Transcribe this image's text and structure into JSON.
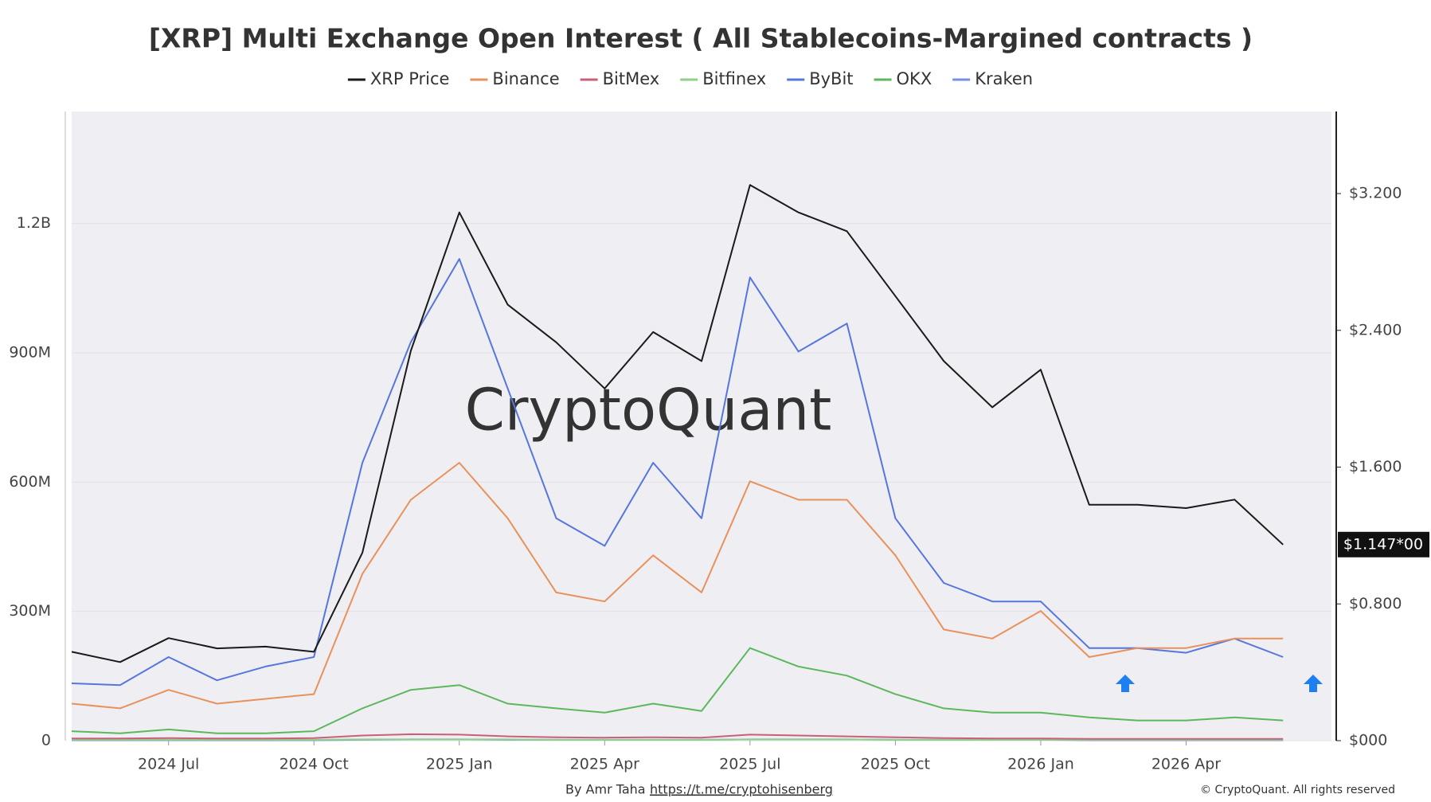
{
  "chart_data": {
    "type": "line",
    "title": "[XRP] Multi Exchange Open Interest ( All Stablecoins-Margined contracts )",
    "watermark": "CryptoQuant",
    "byline": "By Amr Taha",
    "link": "https://t.me/cryptohisenberg",
    "copyright": "© CryptoQuant. All rights reserved",
    "price_label": "$1.147*00",
    "x": [
      "2024-05",
      "2024-06",
      "2024-07",
      "2024-08",
      "2024-09",
      "2024-10",
      "2024-11",
      "2024-12",
      "2025-01",
      "2025-02",
      "2025-03",
      "2025-04",
      "2025-05",
      "2025-06",
      "2025-07",
      "2025-08",
      "2025-09",
      "2025-10",
      "2025-11",
      "2025-12",
      "2026-01",
      "2026-02",
      "2026-03",
      "2026-04",
      "2026-05",
      "2026-06"
    ],
    "xlim": [
      "2024-05",
      "2026-07"
    ],
    "xticks": [
      {
        "value": "2024-07",
        "label": "2024 Jul"
      },
      {
        "value": "2024-10",
        "label": "2024 Oct"
      },
      {
        "value": "2025-01",
        "label": "2025 Jan"
      },
      {
        "value": "2025-04",
        "label": "2025 Apr"
      },
      {
        "value": "2025-07",
        "label": "2025 Jul"
      },
      {
        "value": "2025-10",
        "label": "2025 Oct"
      },
      {
        "value": "2026-01",
        "label": "2026 Jan"
      },
      {
        "value": "2026-04",
        "label": "2026 Apr"
      }
    ],
    "ylim": [
      0,
      1460000000
    ],
    "yticks": [
      0,
      {
        "value": 300000000,
        "label": "300M"
      },
      {
        "value": 600000000,
        "label": "600M"
      },
      {
        "value": 900000000,
        "label": "900M"
      },
      {
        "value": 1200000000,
        "label": "1.2B"
      }
    ],
    "y2lim": [
      0,
      3.68
    ],
    "y2ticks": [
      {
        "value": 0,
        "label": "$000"
      },
      {
        "value": 0.8,
        "label": "$0.800"
      },
      {
        "value": 1.6,
        "label": "$1.600"
      },
      {
        "value": 2.4,
        "label": "$2.400"
      },
      {
        "value": 3.2,
        "label": "$3.200"
      }
    ],
    "grid": true,
    "legend": "top",
    "series": [
      {
        "name": "XRP Price",
        "color": "#1a1a1a",
        "axis": "y2",
        "values": [
          0.52,
          0.46,
          0.6,
          0.54,
          0.55,
          0.52,
          1.1,
          2.28,
          3.09,
          2.55,
          2.33,
          2.06,
          2.39,
          2.22,
          3.25,
          3.09,
          2.98,
          2.6,
          2.22,
          1.95,
          2.17,
          1.38,
          1.38,
          1.36,
          1.41,
          1.147
        ]
      },
      {
        "name": "Binance",
        "color": "#e8915a",
        "values": [
          86000000,
          75000000,
          118000000,
          86000000,
          97000000,
          108000000,
          387000000,
          559000000,
          645000000,
          516000000,
          344000000,
          323000000,
          430000000,
          344000000,
          602000000,
          559000000,
          559000000,
          430000000,
          258000000,
          237000000,
          301000000,
          194000000,
          215000000,
          215000000,
          237000000,
          237000000
        ]
      },
      {
        "name": "BitMex",
        "color": "#c9607a",
        "values": [
          5000000,
          5000000,
          6000000,
          5000000,
          5000000,
          6000000,
          12000000,
          15000000,
          14000000,
          10000000,
          8000000,
          7000000,
          8000000,
          7000000,
          14000000,
          12000000,
          10000000,
          8000000,
          6000000,
          5000000,
          5000000,
          4000000,
          4000000,
          4000000,
          4000000,
          4000000
        ]
      },
      {
        "name": "Bitfinex",
        "color": "#8fcf8a",
        "values": [
          2000000,
          2000000,
          2000000,
          2000000,
          2000000,
          2000000,
          3000000,
          3000000,
          3000000,
          3000000,
          2000000,
          2000000,
          2000000,
          2000000,
          3000000,
          3000000,
          3000000,
          2000000,
          2000000,
          2000000,
          2000000,
          2000000,
          2000000,
          2000000,
          2000000,
          2000000
        ]
      },
      {
        "name": "ByBit",
        "color": "#5577dd",
        "values": [
          133000000,
          129000000,
          194000000,
          140000000,
          172000000,
          194000000,
          645000000,
          925000000,
          1118000000,
          817000000,
          516000000,
          452000000,
          645000000,
          516000000,
          1075000000,
          903000000,
          968000000,
          516000000,
          366000000,
          323000000,
          323000000,
          215000000,
          215000000,
          204000000,
          237000000,
          194000000
        ]
      },
      {
        "name": "OKX",
        "color": "#5cb85c",
        "values": [
          22000000,
          17000000,
          26000000,
          17000000,
          17000000,
          22000000,
          75000000,
          118000000,
          129000000,
          86000000,
          75000000,
          65000000,
          86000000,
          69000000,
          215000000,
          172000000,
          151000000,
          108000000,
          75000000,
          65000000,
          65000000,
          54000000,
          47000000,
          47000000,
          54000000,
          47000000
        ]
      },
      {
        "name": "Kraken",
        "color": "#7a8ee6",
        "values": [
          1000000,
          1000000,
          1000000,
          1000000,
          1000000,
          1000000,
          2000000,
          3000000,
          3000000,
          2000000,
          2000000,
          2000000,
          2000000,
          2000000,
          3000000,
          3000000,
          3000000,
          2000000,
          2000000,
          2000000,
          2000000,
          1000000,
          1000000,
          1000000,
          1000000,
          1000000
        ]
      }
    ]
  }
}
